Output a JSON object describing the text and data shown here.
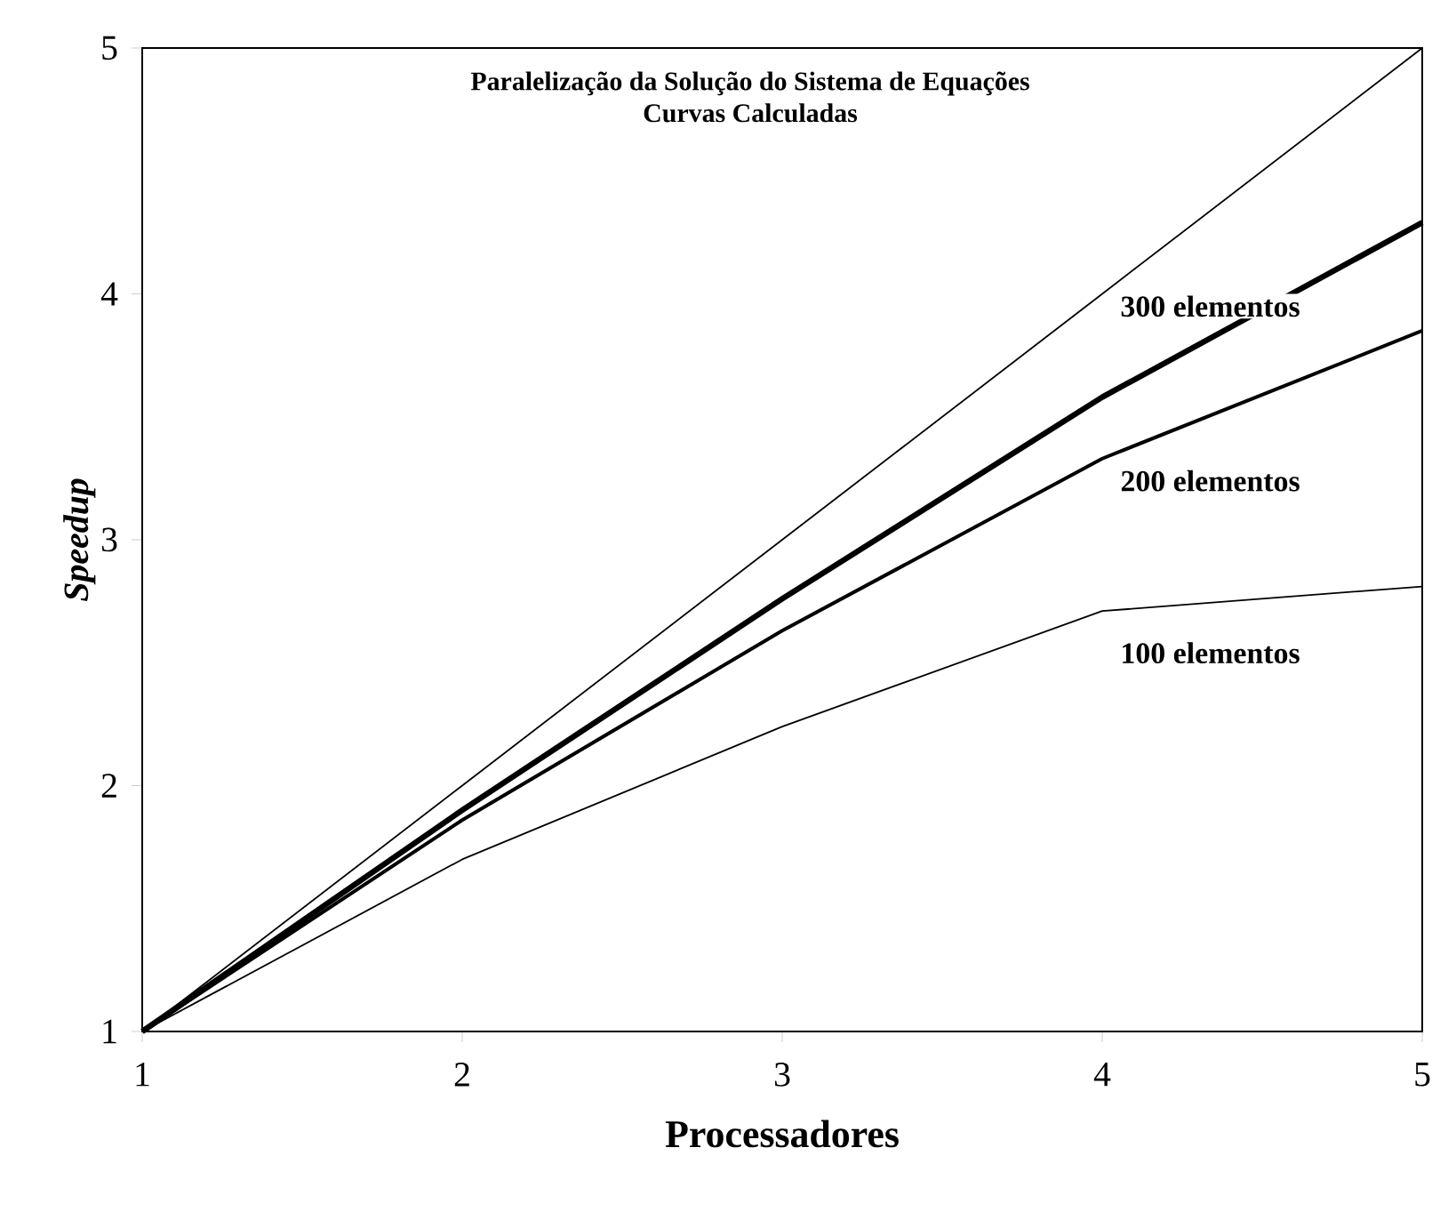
{
  "chart_data": {
    "type": "line",
    "title": "Paralelização da Solução do Sistema de Equações",
    "subtitle": "Curvas Calculadas",
    "xlabel": "Processadores",
    "ylabel": "*Speedup*",
    "x": [
      1,
      2,
      3,
      4,
      5
    ],
    "xlim": [
      1,
      5
    ],
    "ylim": [
      1,
      5
    ],
    "xticks": [
      1,
      2,
      3,
      4,
      5
    ],
    "yticks": [
      1,
      2,
      3,
      4,
      5
    ],
    "legend": false,
    "grid": false,
    "marker": "none",
    "line_style": "solid",
    "series": [
      {
        "color": "#000000",
        "values": [
          1,
          2,
          3,
          4,
          5
        ]
      },
      {
        "name": "300 elementos",
        "color": "#000000",
        "values": [
          1,
          1.9,
          2.76,
          3.58,
          4.29
        ]
      },
      {
        "name": "200 elementos",
        "color": "#000000",
        "values": [
          1,
          1.86,
          2.63,
          3.33,
          3.85
        ]
      },
      {
        "name": "100 elementos",
        "color": "#000000",
        "values": [
          1,
          1.7,
          2.24,
          2.71,
          2.81
        ]
      }
    ]
  }
}
